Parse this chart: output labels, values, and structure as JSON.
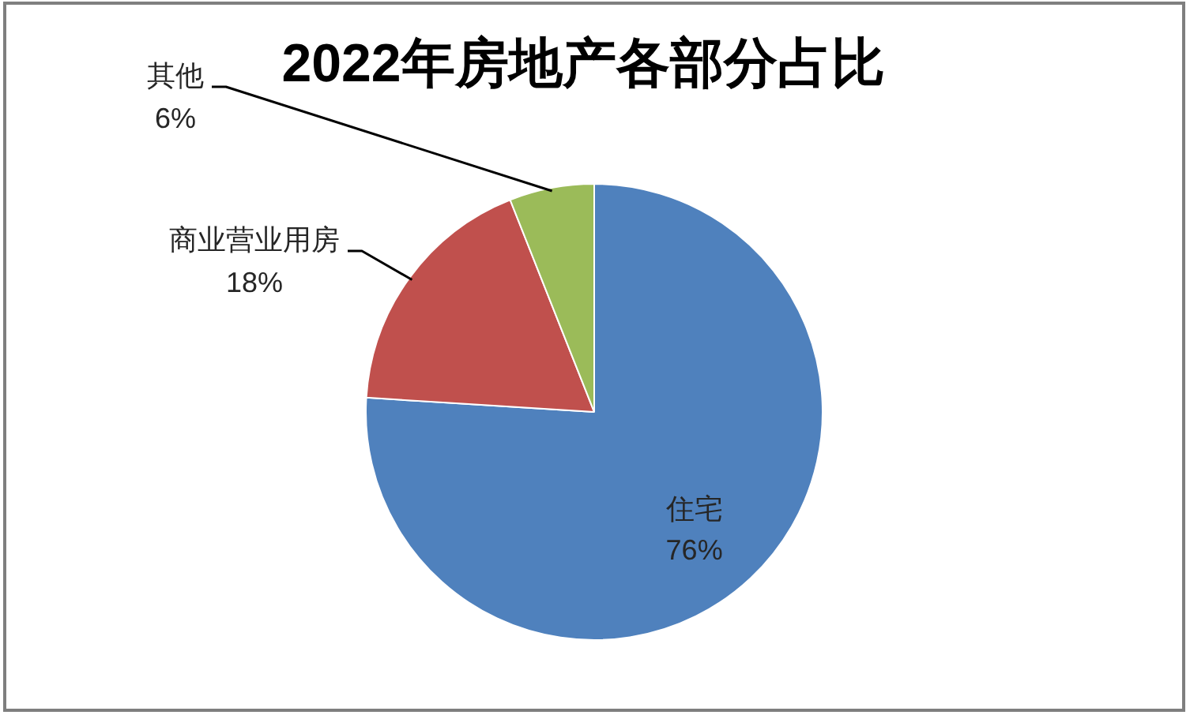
{
  "chart_data": {
    "type": "pie",
    "title": "2022年房地产各部分占比",
    "categories": [
      "住宅",
      "商业营业用房",
      "其他"
    ],
    "values": [
      76,
      18,
      6
    ],
    "colors": [
      "#4f81bd",
      "#c0504d",
      "#9bbb59"
    ],
    "value_labels": [
      "76%",
      "18%",
      "6%"
    ],
    "legend": false
  }
}
